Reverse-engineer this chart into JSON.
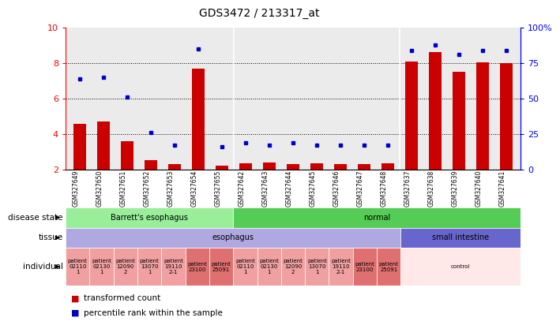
{
  "title": "GDS3472 / 213317_at",
  "samples": [
    "GSM327649",
    "GSM327650",
    "GSM327651",
    "GSM327652",
    "GSM327653",
    "GSM327654",
    "GSM327655",
    "GSM327642",
    "GSM327643",
    "GSM327644",
    "GSM327645",
    "GSM327646",
    "GSM327647",
    "GSM327648",
    "GSM327637",
    "GSM327638",
    "GSM327639",
    "GSM327640",
    "GSM327641"
  ],
  "bar_values": [
    4.6,
    4.7,
    3.6,
    2.55,
    2.3,
    7.7,
    2.25,
    2.35,
    2.4,
    2.3,
    2.35,
    2.3,
    2.3,
    2.35,
    8.1,
    8.6,
    7.5,
    8.05,
    8.0
  ],
  "dot_values": [
    7.1,
    7.2,
    6.1,
    4.1,
    3.4,
    8.8,
    3.3,
    3.5,
    3.4,
    3.5,
    3.4,
    3.4,
    3.4,
    3.4,
    8.7,
    9.0,
    8.5,
    8.7,
    8.7
  ],
  "ylim": [
    2,
    10
  ],
  "yticks": [
    2,
    4,
    6,
    8,
    10
  ],
  "yticks_right": [
    0,
    25,
    50,
    75,
    100
  ],
  "bar_color": "#cc0000",
  "dot_color": "#0000cc",
  "plot_bg": "#ebebeb",
  "n_samples": 19,
  "ds_groups": [
    {
      "label": "Barrett's esophagus",
      "start": 0,
      "end": 7,
      "color": "#99ee99"
    },
    {
      "label": "normal",
      "start": 7,
      "end": 19,
      "color": "#55cc55"
    }
  ],
  "tissue_groups": [
    {
      "label": "esophagus",
      "start": 0,
      "end": 14,
      "color": "#b0a8e0"
    },
    {
      "label": "small intestine",
      "start": 14,
      "end": 19,
      "color": "#6666cc"
    }
  ],
  "indiv_groups": [
    {
      "label": "patient\n02110\n1",
      "start": 0,
      "end": 1,
      "color": "#f0a0a0"
    },
    {
      "label": "patient\n02130\n1",
      "start": 1,
      "end": 2,
      "color": "#f0a0a0"
    },
    {
      "label": "patient\n12090\n2",
      "start": 2,
      "end": 3,
      "color": "#f0a0a0"
    },
    {
      "label": "patient\n13070\n1",
      "start": 3,
      "end": 4,
      "color": "#f0a0a0"
    },
    {
      "label": "patient\n19110\n2-1",
      "start": 4,
      "end": 5,
      "color": "#f0a0a0"
    },
    {
      "label": "patient\n23100",
      "start": 5,
      "end": 6,
      "color": "#e07070"
    },
    {
      "label": "patient\n25091",
      "start": 6,
      "end": 7,
      "color": "#e07070"
    },
    {
      "label": "patient\n02110\n1",
      "start": 7,
      "end": 8,
      "color": "#f0a0a0"
    },
    {
      "label": "patient\n02130\n1",
      "start": 8,
      "end": 9,
      "color": "#f0a0a0"
    },
    {
      "label": "patient\n12090\n2",
      "start": 9,
      "end": 10,
      "color": "#f0a0a0"
    },
    {
      "label": "patient\n13070\n1",
      "start": 10,
      "end": 11,
      "color": "#f0a0a0"
    },
    {
      "label": "patient\n19110\n2-1",
      "start": 11,
      "end": 12,
      "color": "#f0a0a0"
    },
    {
      "label": "patient\n23100",
      "start": 12,
      "end": 13,
      "color": "#e07070"
    },
    {
      "label": "patient\n25091",
      "start": 13,
      "end": 14,
      "color": "#e07070"
    },
    {
      "label": "control",
      "start": 14,
      "end": 19,
      "color": "#ffe8e8"
    }
  ],
  "left_labels": [
    "disease state",
    "tissue",
    "individual"
  ],
  "legend_items": [
    {
      "color": "#cc0000",
      "label": "transformed count"
    },
    {
      "color": "#0000cc",
      "label": "percentile rank within the sample"
    }
  ]
}
